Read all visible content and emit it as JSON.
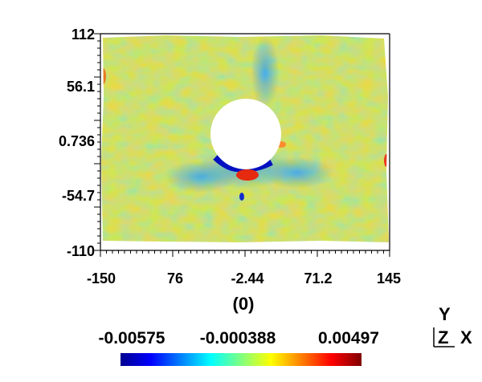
{
  "chart_data": {
    "type": "heatmap",
    "title": "",
    "xlabel": "(0)",
    "ylabel": "",
    "xlim": [
      -150,
      145
    ],
    "ylim": [
      -110,
      112
    ],
    "x_ticks": [
      "-150",
      "76",
      "-2.44",
      "71.2",
      "145"
    ],
    "y_ticks": [
      "112",
      "56.1",
      "0.736",
      "-54.7",
      "-110"
    ],
    "colorbar": {
      "labels": [
        "-0.00575",
        "-0.000388",
        "0.00497"
      ],
      "range": [
        -0.00575,
        0.00497
      ],
      "colormap": "jet"
    },
    "features": [
      {
        "label": "central hole",
        "x": 0,
        "y": 8,
        "radius": 38
      },
      {
        "label": "low (blue) band",
        "x_range": [
          -40,
          40
        ],
        "y_range": [
          -35,
          -15
        ]
      },
      {
        "label": "high (red) spot",
        "x": 5,
        "y": -35
      }
    ]
  },
  "orientation_triad": {
    "vertical_axis": "Y",
    "out_of_plane_axis": "Z",
    "horizontal_axis": "X"
  },
  "colors": {
    "background": "#ffffff",
    "field_base": "#c8e85a",
    "low": "#0000c8",
    "high": "#c80000"
  }
}
